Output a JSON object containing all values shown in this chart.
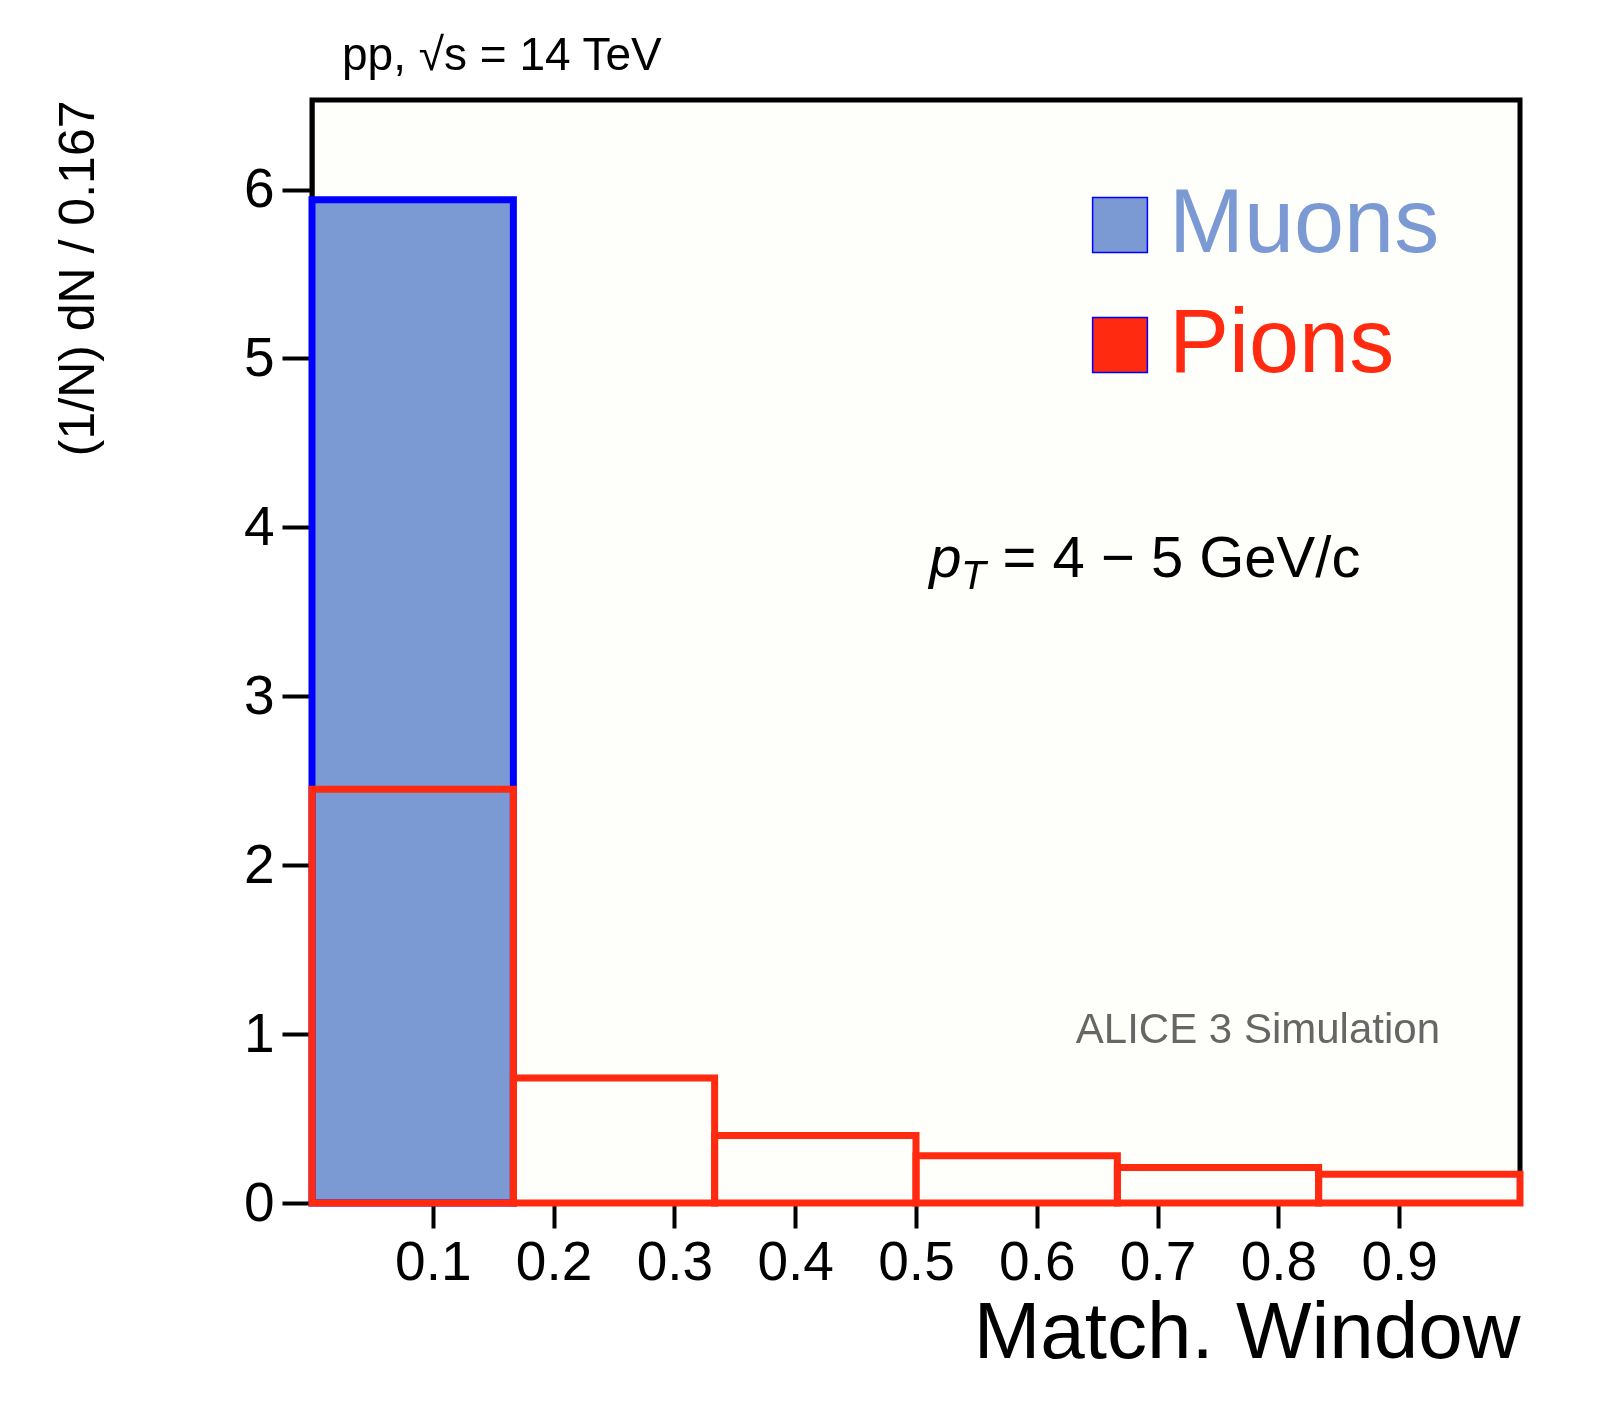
{
  "chart_data": {
    "type": "histogram",
    "title": "pp, √s = 14 TeV",
    "xlabel": "Match. Window",
    "ylabel": "(1/N) dN  /  0.167",
    "bins": [
      0,
      0.1667,
      0.3333,
      0.5,
      0.6667,
      0.8333,
      1
    ],
    "series": [
      {
        "name": "Muons",
        "color": "#7b9ad3",
        "values": [
          5.94,
          null,
          null,
          null,
          null,
          null
        ]
      },
      {
        "name": "Pions",
        "color": "#ff2a10",
        "values": [
          2.45,
          0.74,
          0.4,
          0.28,
          0.21,
          0.17
        ]
      }
    ],
    "xlim": [
      0,
      1
    ],
    "ylim": [
      0,
      6.53
    ],
    "xticks": [
      0.1,
      0.2,
      0.3,
      0.4,
      0.5,
      0.6,
      0.7,
      0.8,
      0.9
    ],
    "yticks": [
      0,
      1,
      2,
      3,
      4,
      5,
      6
    ],
    "grid": false,
    "legend": "top right",
    "annotations": [
      "p$_{T}$ = 4 − 5 GeV/c",
      "ALICE 3 Simulation"
    ]
  }
}
